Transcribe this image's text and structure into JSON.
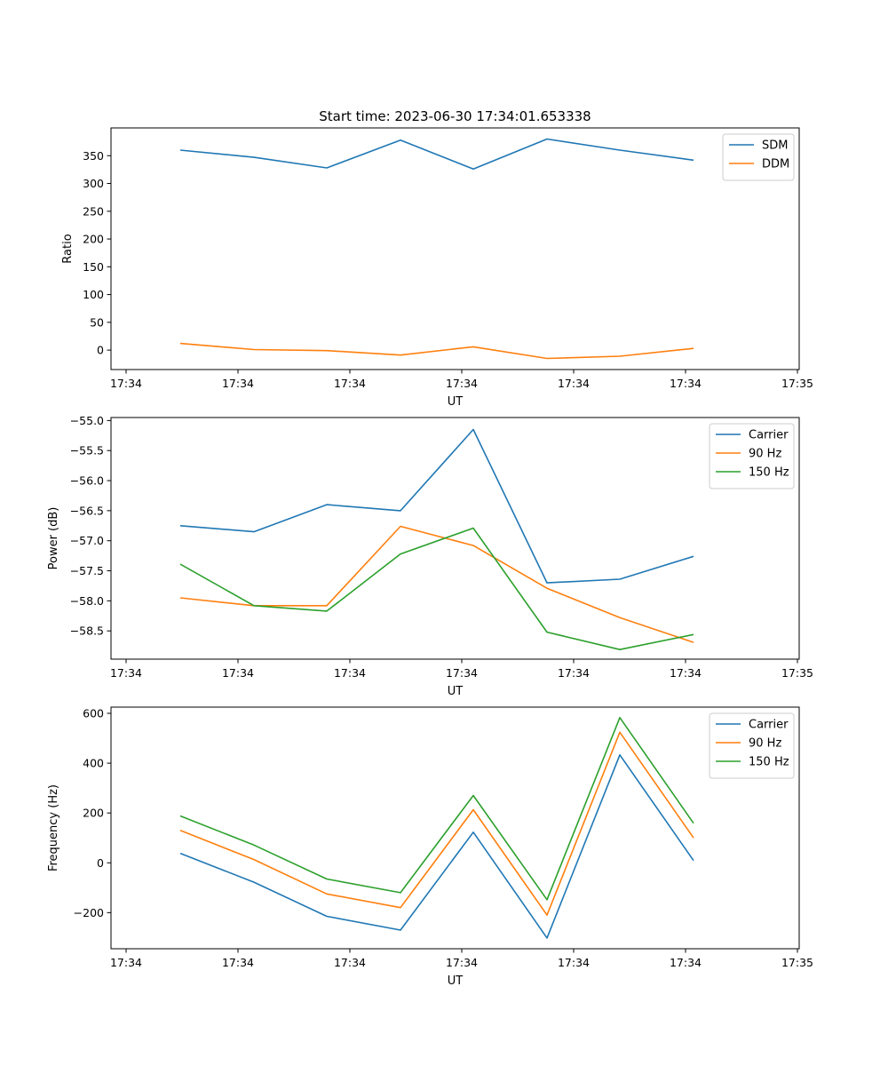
{
  "figure": {
    "title": "Start time: 2023-06-30 17:34:01.653338"
  },
  "chart_data": [
    {
      "type": "line",
      "xlabel": "UT",
      "ylabel": "Ratio",
      "x_tick_labels": [
        "17:34",
        "17:34",
        "17:34",
        "17:34",
        "17:34",
        "17:34",
        "17:34",
        "17:35"
      ],
      "ylim": [
        -35,
        400
      ],
      "y_ticks": [
        0,
        50,
        100,
        150,
        200,
        250,
        300,
        350
      ],
      "y_tick_labels": [
        "0",
        "50",
        "100",
        "150",
        "200",
        "250",
        "300",
        "350"
      ],
      "legend_position": "top-right",
      "series": [
        {
          "name": "SDM",
          "color": "#1f77b4",
          "values": [
            360,
            347,
            328,
            378,
            326,
            380,
            360,
            342
          ]
        },
        {
          "name": "DDM",
          "color": "#ff7f0e",
          "values": [
            12,
            1,
            -1,
            -9,
            6,
            -15,
            -11,
            3
          ]
        }
      ]
    },
    {
      "type": "line",
      "xlabel": "UT",
      "ylabel": "Power (dB)",
      "x_tick_labels": [
        "17:34",
        "17:34",
        "17:34",
        "17:34",
        "17:34",
        "17:34",
        "17:34",
        "17:35"
      ],
      "ylim": [
        -58.97,
        -54.95
      ],
      "y_ticks": [
        -58.5,
        -58.0,
        -57.5,
        -57.0,
        -56.5,
        -56.0,
        -55.5,
        -55.0
      ],
      "y_tick_labels": [
        "−58.5",
        "−58.0",
        "−57.5",
        "−57.0",
        "−56.5",
        "−56.0",
        "−55.5",
        "−55.0"
      ],
      "legend_position": "top-right",
      "series": [
        {
          "name": "Carrier",
          "color": "#1f77b4",
          "values": [
            -56.75,
            -56.85,
            -56.4,
            -56.5,
            -55.15,
            -57.7,
            -57.64,
            -57.26
          ]
        },
        {
          "name": "90 Hz",
          "color": "#ff7f0e",
          "values": [
            -57.95,
            -58.08,
            -58.08,
            -56.76,
            -57.08,
            -57.79,
            -58.28,
            -58.69
          ]
        },
        {
          "name": "150 Hz",
          "color": "#2ca02c",
          "values": [
            -57.39,
            -58.08,
            -58.17,
            -57.22,
            -56.79,
            -58.52,
            -58.81,
            -58.56
          ]
        }
      ]
    },
    {
      "type": "line",
      "xlabel": "UT",
      "ylabel": "Frequency (Hz)",
      "x_tick_labels": [
        "17:34",
        "17:34",
        "17:34",
        "17:34",
        "17:34",
        "17:34",
        "17:34",
        "17:35"
      ],
      "ylim": [
        -345,
        625
      ],
      "y_ticks": [
        -200,
        0,
        200,
        400,
        600
      ],
      "y_tick_labels": [
        "−200",
        "0",
        "200",
        "400",
        "600"
      ],
      "legend_position": "top-right",
      "series": [
        {
          "name": "Carrier",
          "color": "#1f77b4",
          "values": [
            38,
            -78,
            -215,
            -270,
            123,
            -302,
            433,
            9
          ]
        },
        {
          "name": "90 Hz",
          "color": "#ff7f0e",
          "values": [
            130,
            13,
            -125,
            -180,
            213,
            -210,
            524,
            100
          ]
        },
        {
          "name": "150 Hz",
          "color": "#2ca02c",
          "values": [
            188,
            71,
            -65,
            -120,
            270,
            -148,
            583,
            159
          ]
        }
      ]
    }
  ]
}
